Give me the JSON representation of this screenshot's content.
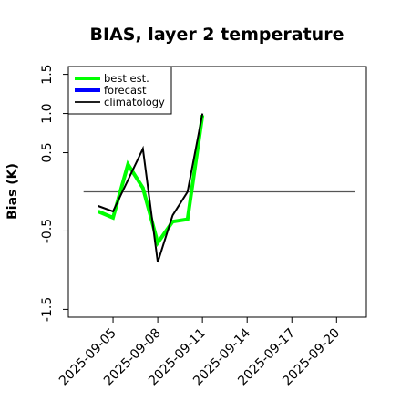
{
  "chart_data": {
    "type": "line",
    "title": "BIAS, layer 2 temperature",
    "xlabel": "",
    "ylabel": "Bias (K)",
    "xlim": [
      "2025-09-02",
      "2025-09-22"
    ],
    "ylim": [
      -1.6,
      1.6
    ],
    "yticks": [
      -1.5,
      -0.5,
      0.5,
      1.0,
      1.5
    ],
    "ytick_labels": [
      "-1.5",
      "-0.5",
      "0.5",
      "1.0",
      "1.5"
    ],
    "xticks": [
      "2025-09-05",
      "2025-09-08",
      "2025-09-11",
      "2025-09-14",
      "2025-09-17",
      "2025-09-20"
    ],
    "highlight_tick": "2025-09-11",
    "highlight_color": "#228B22",
    "hline": 0,
    "legend_position": "top-left",
    "series": [
      {
        "name": "best est.",
        "color": "#00ff00",
        "x": [
          "2025-09-04",
          "2025-09-05",
          "2025-09-06",
          "2025-09-07",
          "2025-09-08",
          "2025-09-09",
          "2025-09-10",
          "2025-09-11"
        ],
        "y": [
          -0.25,
          -0.33,
          0.35,
          0.05,
          -0.65,
          -0.38,
          -0.35,
          0.98
        ]
      },
      {
        "name": "forecast",
        "color": "#0000ff",
        "x": [],
        "y": []
      },
      {
        "name": "climatology",
        "color": "#000000",
        "x": [
          "2025-09-04",
          "2025-09-05",
          "2025-09-07",
          "2025-09-08",
          "2025-09-09",
          "2025-09-10",
          "2025-09-11"
        ],
        "y": [
          -0.18,
          -0.25,
          0.55,
          -0.9,
          -0.3,
          0.0,
          1.0
        ]
      }
    ]
  }
}
